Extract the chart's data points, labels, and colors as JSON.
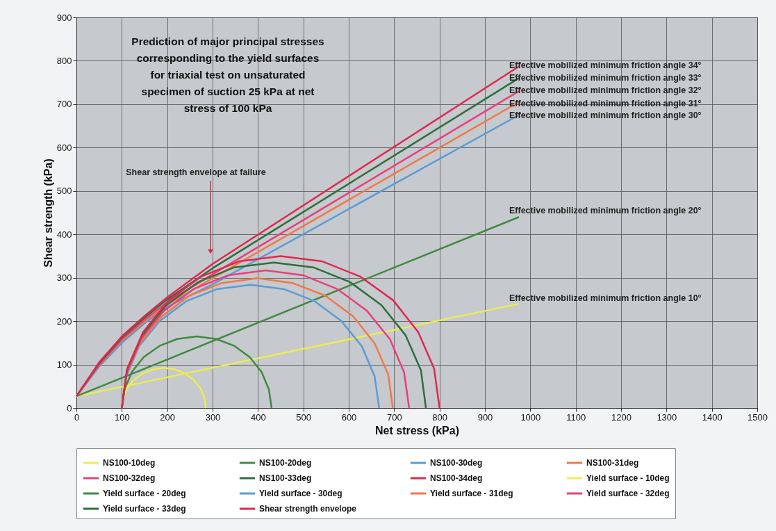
{
  "chart_data": {
    "type": "line",
    "title": "Prediction of major principal stresses\ncorresponding to the yield surfaces\nfor triaxial test on unsaturated\nspecimen of suction 25 kPa at net\nstress of 100 kPa",
    "xlabel": "Net stress (kPa)",
    "ylabel": "Shear strength (kPa)",
    "xlim": [
      0,
      1500
    ],
    "xticks": [
      0,
      100,
      200,
      300,
      400,
      500,
      600,
      700,
      800,
      900,
      1000,
      1100,
      1200,
      1300,
      1400,
      1500
    ],
    "ylim": [
      0,
      900
    ],
    "yticks": [
      0,
      100,
      200,
      300,
      400,
      500,
      600,
      700,
      800,
      900
    ],
    "grid": true,
    "legend": "bottom",
    "marker": "none",
    "line_style": "solid",
    "series": [
      {
        "name": "NS100-10deg",
        "color": "#ecec50",
        "x": [
          0,
          975
        ],
        "values": [
          27,
          240
        ]
      },
      {
        "name": "NS100-20deg",
        "color": "#3f8a3f",
        "x": [
          0,
          975
        ],
        "values": [
          27,
          440
        ]
      },
      {
        "name": "NS100-30deg",
        "color": "#5b9bd5",
        "x": [
          0,
          50,
          100,
          150,
          200,
          300,
          975
        ],
        "values": [
          27,
          95,
          150,
          195,
          233,
          285,
          675
        ]
      },
      {
        "name": "NS100-31deg",
        "color": "#f07848",
        "x": [
          0,
          50,
          100,
          150,
          200,
          300,
          975
        ],
        "values": [
          27,
          98,
          155,
          199,
          238,
          299,
          705
        ]
      },
      {
        "name": "NS100-32deg",
        "color": "#e8407a",
        "x": [
          0,
          50,
          100,
          150,
          200,
          300,
          975
        ],
        "values": [
          27,
          100,
          158,
          203,
          244,
          308,
          730
        ]
      },
      {
        "name": "NS100-33deg",
        "color": "#2f6e3a",
        "x": [
          0,
          50,
          100,
          150,
          200,
          300,
          975
        ],
        "values": [
          27,
          103,
          162,
          208,
          250,
          322,
          760
        ]
      },
      {
        "name": "NS100-34deg",
        "color": "#e0284f",
        "x": [
          0,
          50,
          100,
          150,
          200,
          300,
          975
        ],
        "values": [
          27,
          105,
          165,
          212,
          255,
          332,
          787
        ]
      },
      {
        "name": "Yield surface - 10deg",
        "color": "#ecec50",
        "x": [
          100,
          103,
          112,
          127,
          146,
          169,
          192,
          216,
          239,
          258,
          273,
          282,
          285
        ],
        "values": [
          0,
          24,
          46,
          65,
          80,
          89,
          93,
          89,
          80,
          65,
          46,
          24,
          0
        ]
      },
      {
        "name": "Yield surface - 20deg",
        "color": "#3f8a3f",
        "x": [
          100,
          106,
          122,
          148,
          183,
          222,
          265,
          308,
          348,
          382,
          408,
          424,
          430
        ],
        "values": [
          0,
          43,
          83,
          117,
          143,
          159,
          165,
          159,
          143,
          117,
          83,
          43,
          0
        ]
      },
      {
        "name": "Yield surface - 30deg",
        "color": "#5b9bd5",
        "x": [
          100,
          110,
          138,
          183,
          242,
          310,
          384,
          457,
          525,
          584,
          629,
          657,
          667
        ],
        "values": [
          0,
          73,
          142,
          200,
          246,
          274,
          284,
          274,
          246,
          200,
          142,
          73,
          0
        ]
      },
      {
        "name": "Yield surface - 31deg",
        "color": "#f07848",
        "x": [
          100,
          110,
          140,
          188,
          249,
          321,
          399,
          476,
          548,
          610,
          657,
          687,
          697
        ],
        "values": [
          0,
          77,
          149,
          211,
          259,
          288,
          299,
          288,
          259,
          211,
          149,
          77,
          0
        ]
      },
      {
        "name": "Yield surface - 32deg",
        "color": "#e8407a",
        "x": [
          100,
          111,
          142,
          193,
          258,
          335,
          417,
          499,
          575,
          640,
          691,
          722,
          733
        ],
        "values": [
          0,
          82,
          158,
          224,
          274,
          306,
          317,
          306,
          274,
          224,
          158,
          82,
          0
        ]
      },
      {
        "name": "Yield surface - 33deg",
        "color": "#2f6e3a",
        "x": [
          100,
          111,
          145,
          198,
          268,
          348,
          435,
          522,
          603,
          672,
          725,
          759,
          770
        ],
        "values": [
          0,
          87,
          168,
          237,
          290,
          324,
          335,
          324,
          290,
          237,
          168,
          87,
          0
        ]
      },
      {
        "name": "Shear strength envelope",
        "color": "#e0284f",
        "x": [
          100,
          112,
          147,
          203,
          275,
          359,
          450,
          541,
          625,
          698,
          753,
          788,
          800
        ],
        "values": [
          0,
          91,
          175,
          248,
          303,
          338,
          350,
          338,
          303,
          248,
          175,
          91,
          0
        ]
      }
    ],
    "annotations": [
      "Shear strength envelope at failure",
      "Effective mobilized minimum friction angle 34°",
      "Effective mobilized minimum friction angle 33°",
      "Effective mobilized minimum friction angle 32°",
      "Effective mobilized minimum friction angle 31°",
      "Effective mobilized minimum friction angle 30°",
      "Effective mobilized minimum friction angle 20°",
      "Effective mobilized minimum friction angle 10°"
    ]
  }
}
